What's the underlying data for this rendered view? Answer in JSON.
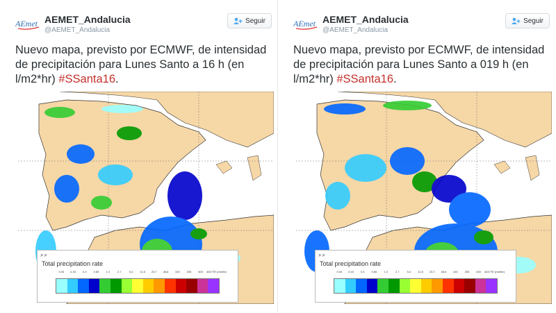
{
  "tweets": [
    {
      "user": {
        "name": "AEMET_Andalucia",
        "handle": "@AEMET_Andalucia",
        "logo_text": "AEmet"
      },
      "follow_label": "Seguir",
      "text_before": "Nuevo mapa, previsto por ECMWF, de intensidad de precipitación para Lunes Santo a 16 h (en l/m2*hr) ",
      "hashtag": "#SSanta16",
      "text_after": ".",
      "map": {
        "legend_title": "Total precipitation rate",
        "legend_ticks": [
          "0.03",
          "0.15",
          "0.3",
          "0.65",
          "1.3",
          "2.7",
          "5.4",
          "11.5",
          "23.7",
          "48.6",
          "100",
          "205",
          "400",
          "4047TE (mm/hr)"
        ]
      }
    },
    {
      "user": {
        "name": "AEMET_Andalucia",
        "handle": "@AEMET_Andalucia",
        "logo_text": "AEmet"
      },
      "follow_label": "Seguir",
      "text_before": "Nuevo mapa, previsto por ECMWF, de intensidad de precipitación para Lunes Santo a 019 h (en l/m2*hr) ",
      "hashtag": "#SSanta16",
      "text_after": ".",
      "map": {
        "legend_title": "Total precipitation rate",
        "legend_ticks": [
          "0.03",
          "0.15",
          "0.3",
          "0.65",
          "1.3",
          "2.7",
          "5.4",
          "11.5",
          "23.7",
          "48.6",
          "100",
          "205",
          "400",
          "4047TE (mm/hr)"
        ]
      }
    }
  ],
  "colors": {
    "land": "#f6d7a6",
    "sea": "#ffffff",
    "hashtag": "#c4302b",
    "legend_swatches": [
      "#99ffff",
      "#33ccff",
      "#0066ff",
      "#0000cc",
      "#33cc33",
      "#009900",
      "#99ff33",
      "#ffff33",
      "#ffcc00",
      "#ff9900",
      "#ff3300",
      "#cc0000",
      "#990000",
      "#cc3399",
      "#9933ff"
    ]
  }
}
